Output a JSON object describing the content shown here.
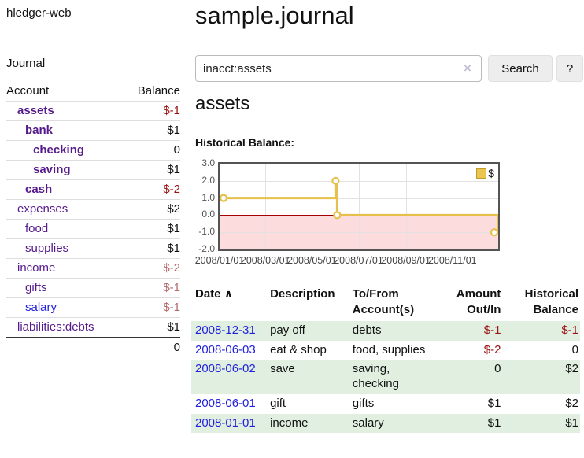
{
  "colors": {
    "purple": "#551a8b",
    "blue": "#2222dd",
    "dark_red": "#9b1414",
    "muted_red": "#b36b6b",
    "black": "#111111",
    "row_green": "#e0efe0",
    "gold": "#e7c04b",
    "gold_fill": "#eac54f",
    "gold_border": "#c19b2e",
    "pink": "#fcdcdc",
    "zero_red": "#a40000"
  },
  "app": {
    "title": "hledger-web"
  },
  "nav": {
    "journal": "Journal"
  },
  "sidebar": {
    "headers": {
      "account": "Account",
      "balance": "Balance"
    },
    "accounts": [
      {
        "name": "assets",
        "indent": 1,
        "balance": "$-1",
        "bold": true,
        "name_color": "purple",
        "balance_color": "dark_red"
      },
      {
        "name": "bank",
        "indent": 2,
        "balance": "$1",
        "bold": true,
        "name_color": "purple",
        "balance_color": "black"
      },
      {
        "name": "checking",
        "indent": 3,
        "balance": "0",
        "bold": true,
        "name_color": "purple",
        "balance_color": "black"
      },
      {
        "name": "saving",
        "indent": 3,
        "balance": "$1",
        "bold": true,
        "name_color": "purple",
        "balance_color": "black"
      },
      {
        "name": "cash",
        "indent": 2,
        "balance": "$-2",
        "bold": true,
        "name_color": "purple",
        "balance_color": "dark_red"
      },
      {
        "name": "expenses",
        "indent": 1,
        "balance": "$2",
        "bold": false,
        "name_color": "purple",
        "balance_color": "black"
      },
      {
        "name": "food",
        "indent": 2,
        "balance": "$1",
        "bold": false,
        "name_color": "purple",
        "balance_color": "black"
      },
      {
        "name": "supplies",
        "indent": 2,
        "balance": "$1",
        "bold": false,
        "name_color": "purple",
        "balance_color": "black"
      },
      {
        "name": "income",
        "indent": 1,
        "balance": "$-2",
        "bold": false,
        "name_color": "purple",
        "balance_color": "muted_red"
      },
      {
        "name": "gifts",
        "indent": 2,
        "balance": "$-1",
        "bold": false,
        "name_color": "purple",
        "balance_color": "muted_red"
      },
      {
        "name": "salary",
        "indent": 2,
        "balance": "$-1",
        "bold": false,
        "name_color": "blue",
        "balance_color": "muted_red"
      },
      {
        "name": "liabilities:debts",
        "indent": 1,
        "balance": "$1",
        "bold": false,
        "name_color": "purple",
        "balance_color": "black"
      }
    ],
    "total": "0"
  },
  "header": {
    "title": "sample.journal"
  },
  "search": {
    "value": "inacct:assets",
    "clear_icon": "×",
    "button": "Search",
    "help_button": "?"
  },
  "account_page": {
    "heading": "assets",
    "chart_title": "Historical Balance:"
  },
  "chart_data": {
    "type": "line",
    "title": "Historical Balance:",
    "legend": "$",
    "legend_position": "top-right",
    "series": [
      {
        "name": "$",
        "step": true,
        "points": [
          [
            "2008-01-01",
            1
          ],
          [
            "2008-06-01",
            2
          ],
          [
            "2008-06-03",
            0
          ],
          [
            "2008-12-31",
            -1
          ]
        ]
      }
    ],
    "x_ticks": [
      "2008/01/01",
      "2008/03/01",
      "2008/05/01",
      "2008/07/01",
      "2008/09/01",
      "2008/11/01"
    ],
    "y_ticks": [
      "3.0",
      "2.0",
      "1.0",
      "0.0",
      "-1.0",
      "-2.0"
    ],
    "xlim": [
      "2008-01-01",
      "2008-12-31"
    ],
    "ylim": [
      -2,
      3
    ],
    "grid": true
  },
  "register": {
    "columns": {
      "date": "Date",
      "sort_indicator": "∧",
      "description": "Description",
      "accounts": "To/From Account(s)",
      "amount": "Amount Out/In",
      "balance": "Historical Balance"
    },
    "rows": [
      {
        "date": "2008-12-31",
        "description": "pay off",
        "accounts": "debts",
        "amount": "$-1",
        "balance": "$-1",
        "shaded": true
      },
      {
        "date": "2008-06-03",
        "description": "eat & shop",
        "accounts": "food, supplies",
        "amount": "$-2",
        "balance": "0",
        "shaded": false
      },
      {
        "date": "2008-06-02",
        "description": "save",
        "accounts": "saving, checking",
        "amount": "0",
        "balance": "$2",
        "shaded": true
      },
      {
        "date": "2008-06-01",
        "description": "gift",
        "accounts": "gifts",
        "amount": "$1",
        "balance": "$2",
        "shaded": false
      },
      {
        "date": "2008-01-01",
        "description": "income",
        "accounts": "salary",
        "amount": "$1",
        "balance": "$1",
        "shaded": true
      }
    ]
  }
}
